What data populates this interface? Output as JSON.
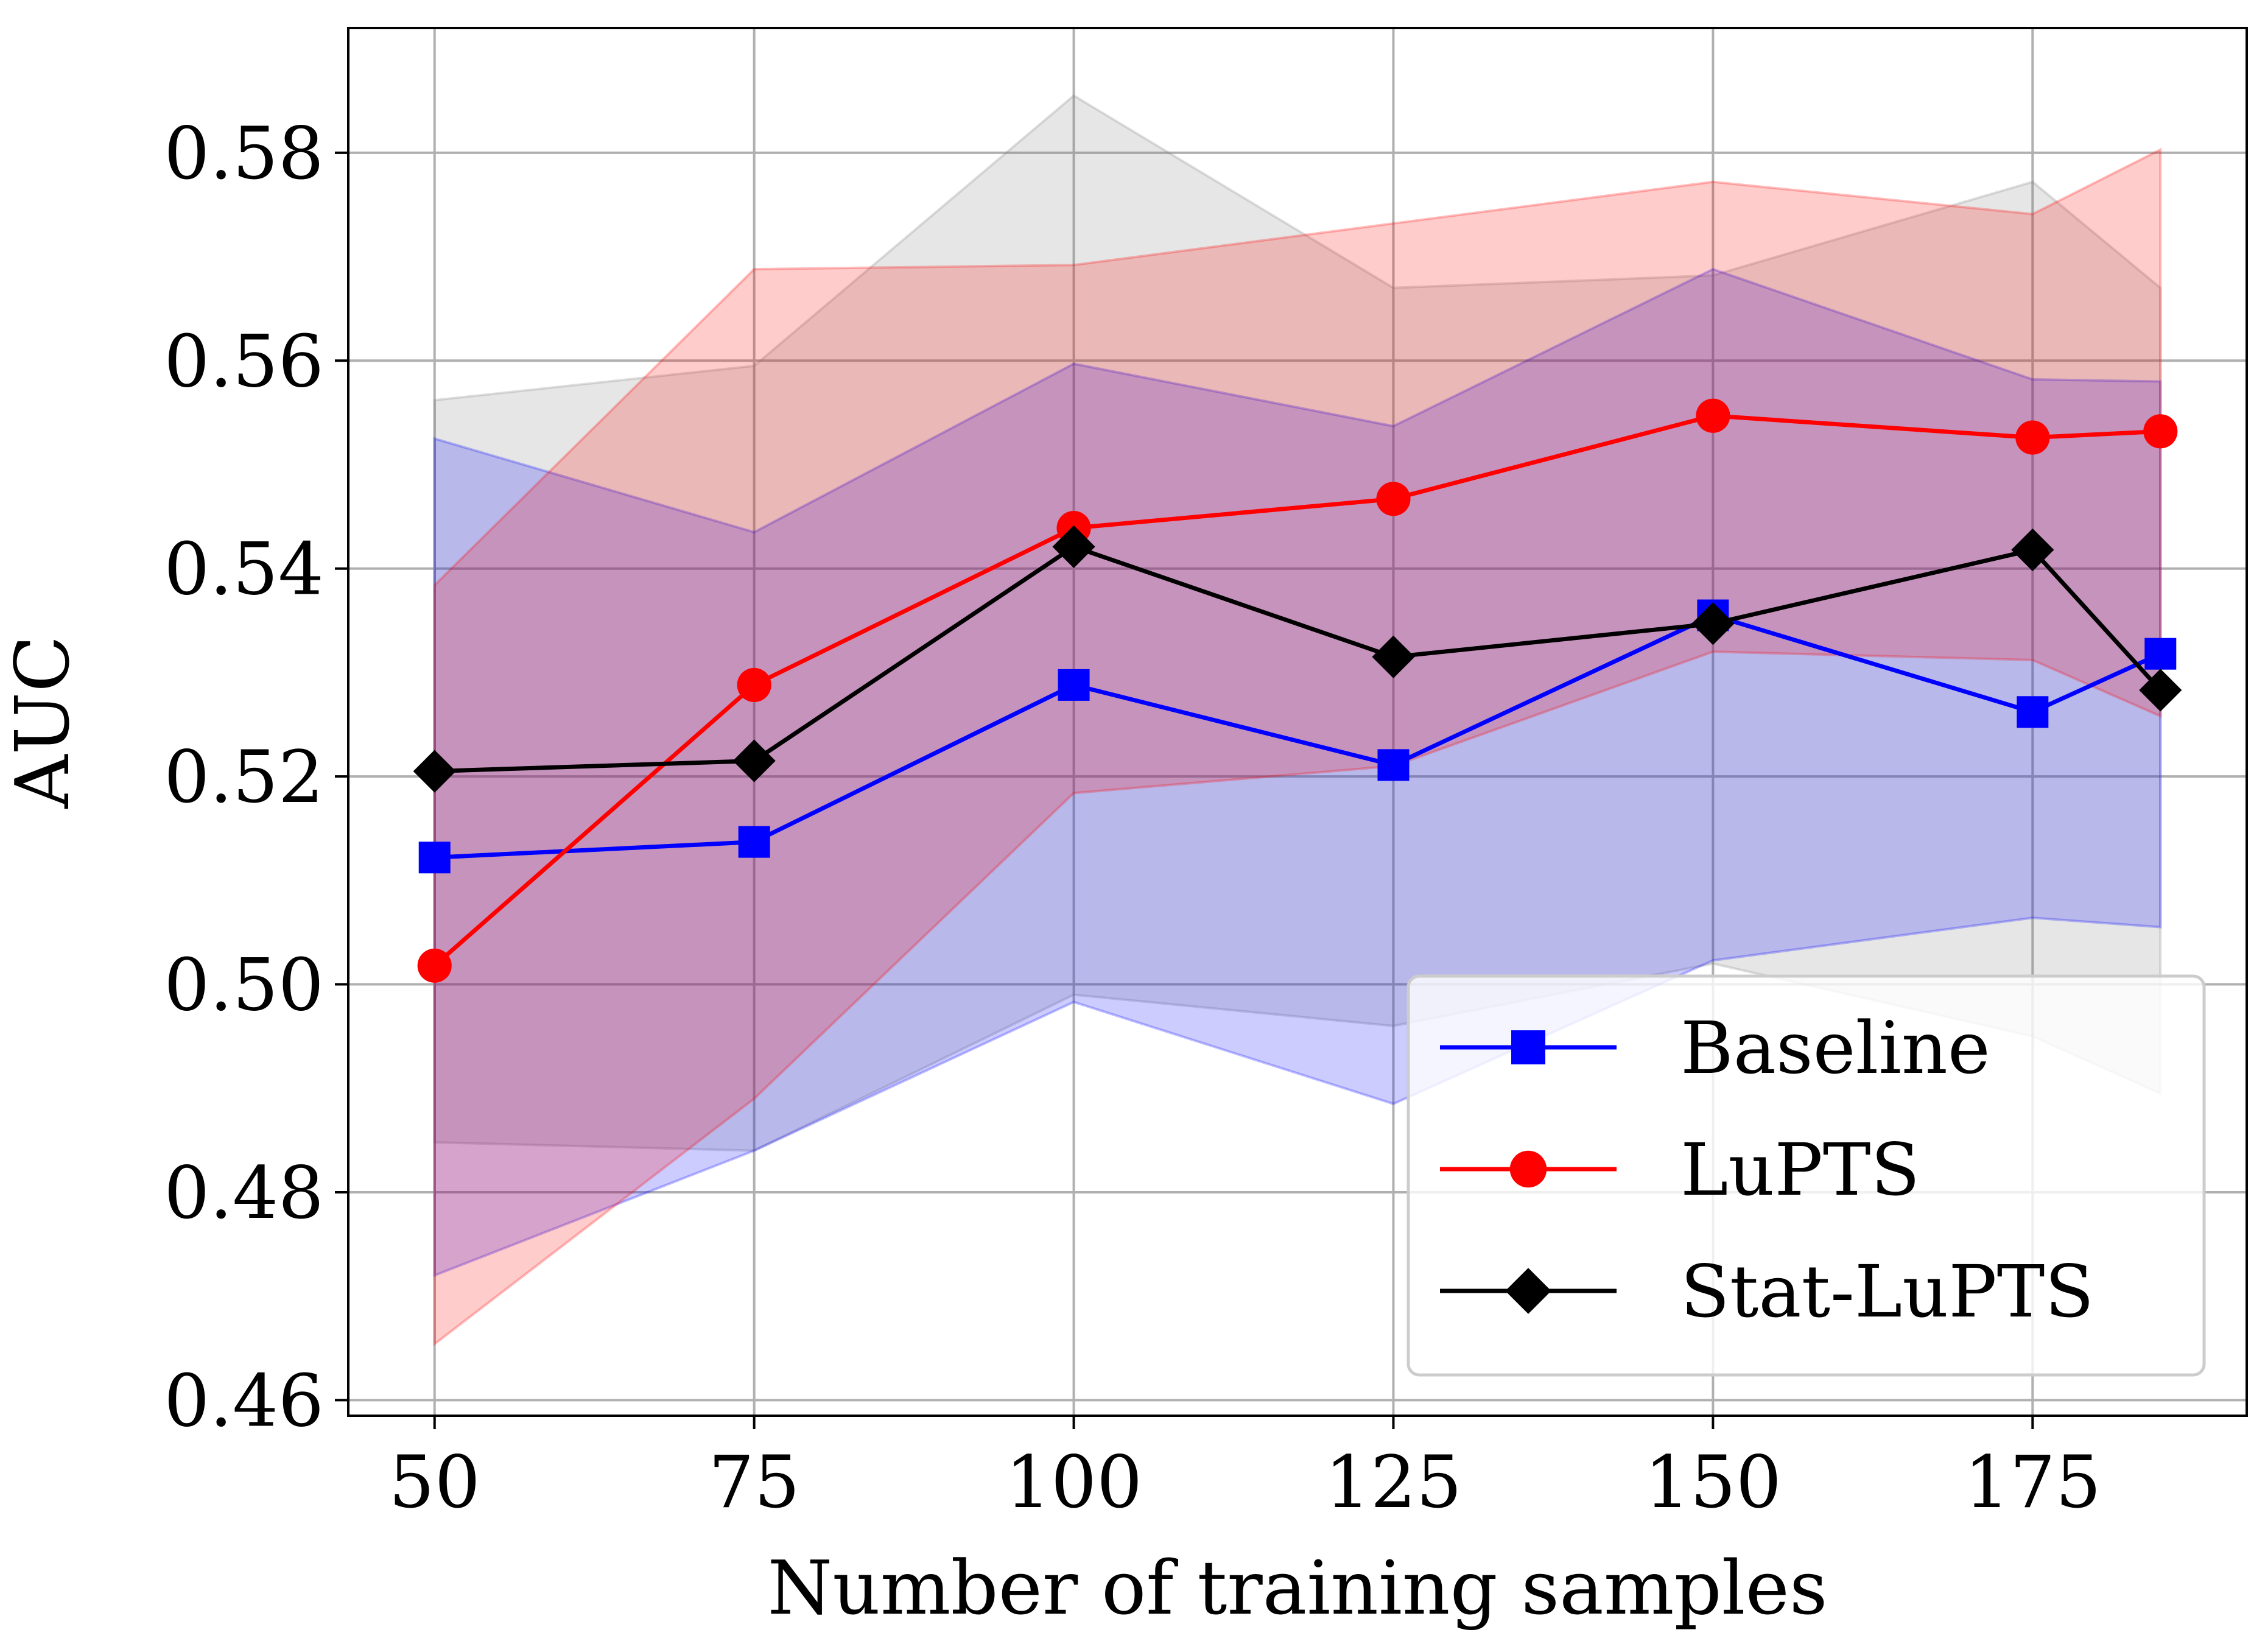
{
  "chart_data": {
    "type": "line",
    "title": "",
    "xlabel": "Number of training samples",
    "ylabel": "AUC",
    "x": [
      50,
      75,
      100,
      125,
      150,
      175,
      185
    ],
    "xlim": [
      43.25,
      191.75
    ],
    "ylim": [
      0.4585,
      0.592
    ],
    "xticks": [
      50,
      75,
      100,
      125,
      150,
      175
    ],
    "xtick_labels": [
      "50",
      "75",
      "100",
      "125",
      "150",
      "175"
    ],
    "yticks": [
      0.46,
      0.48,
      0.5,
      0.52,
      0.54,
      0.56,
      0.58
    ],
    "ytick_labels": [
      "0.46",
      "0.48",
      "0.50",
      "0.52",
      "0.54",
      "0.56",
      "0.58"
    ],
    "grid": true,
    "legend_position": "lower-right",
    "series": [
      {
        "name": "Baseline",
        "color": "#0000ff",
        "marker": "square",
        "values": [
          0.5122,
          0.5137,
          0.5288,
          0.5211,
          0.5355,
          0.5262,
          0.5318
        ],
        "band_lower": [
          0.472,
          0.484,
          0.4983,
          0.4885,
          0.5023,
          0.5064,
          0.5055
        ],
        "band_upper": [
          0.5525,
          0.5435,
          0.5597,
          0.5537,
          0.5688,
          0.5582,
          0.558
        ]
      },
      {
        "name": "LuPTS",
        "color": "#ff0000",
        "marker": "circle",
        "values": [
          0.5018,
          0.5288,
          0.5439,
          0.5467,
          0.5547,
          0.5526,
          0.5532
        ],
        "band_lower": [
          0.4654,
          0.489,
          0.5184,
          0.521,
          0.532,
          0.5312,
          0.5258
        ],
        "band_upper": [
          0.5384,
          0.5688,
          0.5692,
          0.5732,
          0.5772,
          0.5741,
          0.5803
        ]
      },
      {
        "name": "Stat-LuPTS",
        "color": "#000000",
        "marker": "diamond",
        "values": [
          0.5205,
          0.5215,
          0.5421,
          0.5315,
          0.5347,
          0.5418,
          0.5283
        ],
        "band_lower": [
          0.4848,
          0.484,
          0.499,
          0.496,
          0.502,
          0.495,
          0.4895
        ],
        "band_upper": [
          0.5562,
          0.5595,
          0.5855,
          0.567,
          0.5682,
          0.5772,
          0.567
        ]
      }
    ],
    "band_colors": {
      "Baseline": "#0000ff",
      "LuPTS": "#ff0000",
      "Stat-LuPTS": "#808080"
    }
  }
}
